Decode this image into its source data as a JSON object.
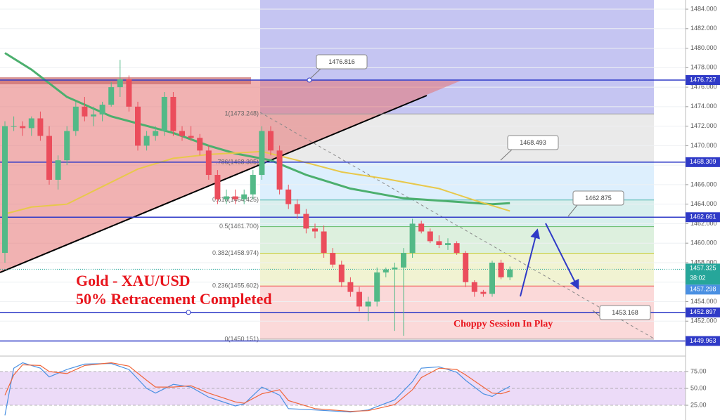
{
  "chart_data": {
    "type": "candlestick",
    "title": "Gold - XAU/USD",
    "subtitle": "50% Retracement Completed",
    "annotation": "Choppy Session In Play",
    "up_color": "#53b987",
    "down_color": "#eb4d5c",
    "open": [
      1459,
      1472,
      1472,
      1471.8,
      1472.8,
      1471,
      1466.5,
      1468.5,
      1471.5,
      1474,
      1473,
      1473.2,
      1474.2,
      1476,
      1476.8,
      1474,
      1470,
      1471,
      1471.5,
      1475,
      1471.5,
      1471,
      1470.8,
      1469.5,
      1467,
      1464.5,
      1464.8,
      1464.5,
      1465,
      1467,
      1471.5,
      1469.5,
      1465.5,
      1464,
      1463,
      1461.5,
      1461.2,
      1459,
      1457.8,
      1456,
      1455,
      1453.5,
      1454,
      1457,
      1457.3,
      1457.5,
      1459,
      1462,
      1461.2,
      1460.2,
      1459.8,
      1460,
      1459,
      1456,
      1455,
      1454.8,
      1458,
      1456.5
    ],
    "high": [
      1472.5,
      1473,
      1472.5,
      1473,
      1473.5,
      1472,
      1469,
      1472,
      1474.5,
      1475,
      1474,
      1474.5,
      1476.5,
      1478.8,
      1477.2,
      1474.5,
      1471.5,
      1472,
      1475.5,
      1475.5,
      1472,
      1472,
      1471.2,
      1470,
      1467.5,
      1465.5,
      1465.5,
      1465.5,
      1467.5,
      1472,
      1472,
      1470,
      1466,
      1464.5,
      1463.5,
      1462,
      1461.8,
      1459.5,
      1458.2,
      1456.5,
      1455.5,
      1454.5,
      1457.5,
      1457.5,
      1458,
      1459.5,
      1462.5,
      1462.3,
      1461.5,
      1460.8,
      1460.5,
      1460.2,
      1459.2,
      1456.2,
      1455.2,
      1458.2,
      1458.3,
      1457.6
    ],
    "low": [
      1458,
      1471.5,
      1471,
      1471,
      1470.5,
      1466,
      1465.5,
      1468,
      1471,
      1472.5,
      1472,
      1472.5,
      1474,
      1475,
      1473.5,
      1469.5,
      1469.5,
      1470.5,
      1471,
      1471,
      1470.5,
      1470.5,
      1469,
      1466.5,
      1464,
      1464,
      1464,
      1464,
      1464.5,
      1466.5,
      1469,
      1465,
      1463.5,
      1462.5,
      1461,
      1460.5,
      1458.5,
      1457.5,
      1455.5,
      1454.5,
      1453,
      1452,
      1453.5,
      1456.5,
      1451,
      1450.5,
      1458.5,
      1461,
      1460,
      1459.5,
      1459.3,
      1458.8,
      1455.5,
      1454.5,
      1454.5,
      1454.5,
      1456.3,
      1456.2
    ],
    "close": [
      1472,
      1472,
      1471.8,
      1472.8,
      1471,
      1466.5,
      1468.5,
      1471.5,
      1474,
      1473,
      1473.2,
      1474.2,
      1476,
      1476.8,
      1474,
      1470,
      1471,
      1471.5,
      1475,
      1471.5,
      1471,
      1470.8,
      1469.5,
      1467,
      1464.5,
      1464.8,
      1464.5,
      1465,
      1467,
      1471.5,
      1469.5,
      1465.5,
      1464,
      1463,
      1461.5,
      1461.2,
      1459,
      1457.8,
      1456,
      1455,
      1453.5,
      1454,
      1457,
      1457.3,
      1457.5,
      1459,
      1462,
      1461.2,
      1460.2,
      1459.8,
      1460,
      1459,
      1456,
      1455,
      1454.8,
      1458,
      1456.5,
      1457.3
    ],
    "ylim": [
      1448.56,
      1484.94
    ],
    "yticks": [
      {
        "value": 1452,
        "label": "1452.000"
      },
      {
        "value": 1454,
        "label": "1454.000"
      },
      {
        "value": 1456,
        "label": "1456.000"
      },
      {
        "value": 1458,
        "label": "1458.000"
      },
      {
        "value": 1460,
        "label": "1460.000"
      },
      {
        "value": 1462,
        "label": "1462.000"
      },
      {
        "value": 1464,
        "label": "1464.000"
      },
      {
        "value": 1466,
        "label": "1466.000"
      },
      {
        "value": 1468,
        "label": "1468.000"
      },
      {
        "value": 1470,
        "label": "1470.000"
      },
      {
        "value": 1472,
        "label": "1472.000"
      },
      {
        "value": 1474,
        "label": "1474.000"
      },
      {
        "value": 1476,
        "label": "1476.000"
      },
      {
        "value": 1478,
        "label": "1478.000"
      },
      {
        "value": 1480,
        "label": "1480.000"
      },
      {
        "value": 1482,
        "label": "1482.000"
      },
      {
        "value": 1484,
        "label": "1484.000"
      }
    ],
    "grid": true,
    "moving_averages": [
      {
        "color": "#4caf6e",
        "x": [
          0,
          3,
          7,
          12,
          19,
          23,
          26,
          30,
          34,
          39,
          45,
          50,
          55,
          57
        ],
        "values": [
          1479.5,
          1477.8,
          1475,
          1473,
          1471.3,
          1470,
          1469.2,
          1468.5,
          1467,
          1465.6,
          1464.6,
          1464.3,
          1464,
          1464.1
        ]
      },
      {
        "color": "#e8c84a",
        "x": [
          0,
          3,
          7,
          11,
          15,
          19,
          23,
          29,
          33,
          38,
          43,
          49,
          53,
          57
        ],
        "values": [
          1463,
          1463.7,
          1464,
          1465.8,
          1467.6,
          1468.7,
          1469.1,
          1469.4,
          1468.5,
          1467.3,
          1466.6,
          1465.6,
          1464.4,
          1463.3
        ]
      }
    ],
    "fibonacci": [
      {
        "value": 1473.248,
        "label": "1(1473.248)",
        "color": "#9e9e9e"
      },
      {
        "value": 1468.305,
        "label": ".786(1468.305)",
        "color": "#64b5f6"
      },
      {
        "value": 1464.425,
        "label": "0.618(1464.425)",
        "color": "#4db6ac"
      },
      {
        "value": 1461.7,
        "label": "0.5(1461.700)",
        "color": "#66bb6a"
      },
      {
        "value": 1458.974,
        "label": "0.382(1458.974)",
        "color": "#c0ca33"
      },
      {
        "value": 1455.602,
        "label": "0.236(1455.602)",
        "color": "#ef5350"
      },
      {
        "value": 1450.151,
        "label": "0(1450.151)",
        "color": "#9e9e9e"
      }
    ],
    "price_lines": [
      1476.727,
      1468.309,
      1462.661,
      1452.897,
      1449.963
    ],
    "price_line_color": "#2f3ac7",
    "callouts": [
      1476.816,
      1468.493,
      1462.875,
      1453.168
    ],
    "last_price": 1457.325,
    "countdown": "38:02",
    "bid_price": 1457.298,
    "oscillator": {
      "ylim": [
        9.4,
        92.7
      ],
      "yticks": [
        {
          "value": 75,
          "label": "75.00"
        },
        {
          "value": 50,
          "label": "50.00"
        },
        {
          "value": 25,
          "label": "25.00"
        }
      ],
      "series": [
        {
          "color": "#4a90e2",
          "x": [
            0,
            1,
            2,
            4,
            5,
            7,
            9,
            12,
            14,
            16,
            17,
            19,
            21,
            23,
            26,
            27,
            29,
            31,
            32,
            35,
            39,
            41,
            44,
            46,
            47,
            49,
            51,
            52,
            54,
            55,
            56,
            57
          ],
          "values": [
            10,
            80,
            88,
            80,
            67,
            78,
            86,
            87,
            78,
            50,
            43,
            56,
            52,
            37,
            24,
            27,
            52,
            40,
            20,
            18,
            15,
            18,
            33,
            60,
            80,
            82,
            74,
            62,
            42,
            38,
            46,
            53
          ]
        },
        {
          "color": "#f0663a",
          "x": [
            0,
            1,
            2,
            4,
            5,
            7,
            9,
            12,
            14,
            16,
            17,
            19,
            21,
            23,
            26,
            27,
            29,
            31,
            32,
            35,
            39,
            41,
            44,
            46,
            47,
            49,
            51,
            52,
            54,
            55,
            56,
            57
          ],
          "values": [
            40,
            70,
            85,
            84,
            75,
            72,
            84,
            88,
            83,
            62,
            52,
            52,
            54,
            43,
            30,
            28,
            42,
            48,
            32,
            20,
            16,
            17,
            26,
            48,
            66,
            80,
            78,
            70,
            52,
            43,
            42,
            46
          ]
        }
      ]
    }
  }
}
